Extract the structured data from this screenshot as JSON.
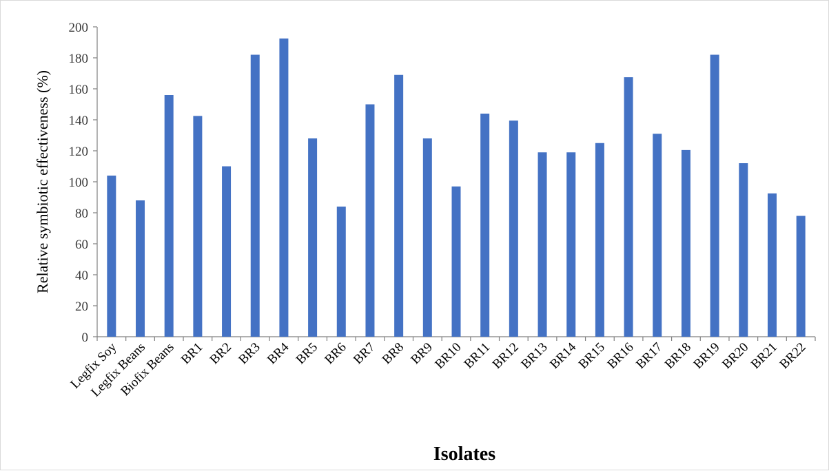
{
  "chart_data": {
    "type": "bar",
    "title": "",
    "xlabel": "Isolates",
    "ylabel": "Relative symbiotic effectiveness (%)",
    "categories": [
      "Legfix Soy",
      "Legfix Beans",
      "Biofix Beans",
      "BR1",
      "BR2",
      "BR3",
      "BR4",
      "BR5",
      "BR6",
      "BR7",
      "BR8",
      "BR9",
      "BR10",
      "BR11",
      "BR12",
      "BR13",
      "BR14",
      "BR15",
      "BR16",
      "BR17",
      "BR18",
      "BR19",
      "BR20",
      "BR21",
      "BR22"
    ],
    "values": [
      104,
      88,
      156,
      142.5,
      110,
      182,
      192.5,
      128,
      84,
      150,
      169,
      128,
      97,
      144,
      139.5,
      119,
      119,
      125,
      167.5,
      131,
      120.5,
      182,
      112,
      92.5,
      78
    ],
    "ylim": [
      0,
      200
    ],
    "yticks": [
      0,
      20,
      40,
      60,
      80,
      100,
      120,
      140,
      160,
      180,
      200
    ],
    "grid": false,
    "legend": "none",
    "bar_color": "#4472c4"
  }
}
